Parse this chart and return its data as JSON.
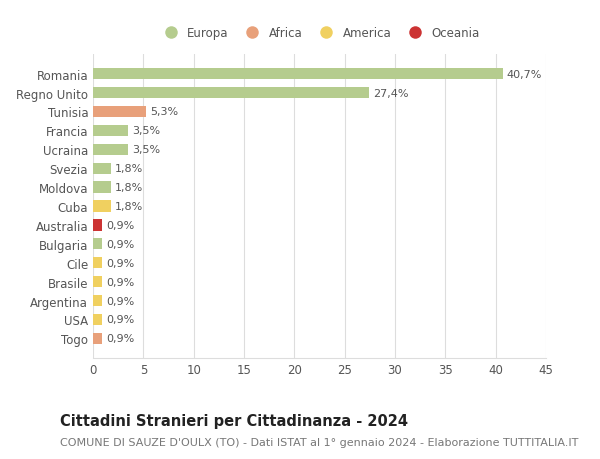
{
  "countries": [
    "Romania",
    "Regno Unito",
    "Tunisia",
    "Francia",
    "Ucraina",
    "Svezia",
    "Moldova",
    "Cuba",
    "Australia",
    "Bulgaria",
    "Cile",
    "Brasile",
    "Argentina",
    "USA",
    "Togo"
  ],
  "values": [
    40.7,
    27.4,
    5.3,
    3.5,
    3.5,
    1.8,
    1.8,
    1.8,
    0.9,
    0.9,
    0.9,
    0.9,
    0.9,
    0.9,
    0.9
  ],
  "labels": [
    "40,7%",
    "27,4%",
    "5,3%",
    "3,5%",
    "3,5%",
    "1,8%",
    "1,8%",
    "1,8%",
    "0,9%",
    "0,9%",
    "0,9%",
    "0,9%",
    "0,9%",
    "0,9%",
    "0,9%"
  ],
  "continents": [
    "Europa",
    "Europa",
    "Africa",
    "Europa",
    "Europa",
    "Europa",
    "Europa",
    "America",
    "Oceania",
    "Europa",
    "America",
    "America",
    "America",
    "America",
    "Africa"
  ],
  "continent_colors": {
    "Europa": "#b5cc8e",
    "Africa": "#e8a07a",
    "America": "#f0d060",
    "Oceania": "#cc3333"
  },
  "legend_order": [
    "Europa",
    "Africa",
    "America",
    "Oceania"
  ],
  "title": "Cittadini Stranieri per Cittadinanza - 2024",
  "subtitle": "COMUNE DI SAUZE D'OULX (TO) - Dati ISTAT al 1° gennaio 2024 - Elaborazione TUTTITALIA.IT",
  "xlim": [
    0,
    45
  ],
  "xticks": [
    0,
    5,
    10,
    15,
    20,
    25,
    30,
    35,
    40,
    45
  ],
  "background_color": "#ffffff",
  "grid_color": "#dddddd",
  "bar_height": 0.6,
  "title_fontsize": 10.5,
  "subtitle_fontsize": 8,
  "tick_fontsize": 8.5,
  "label_fontsize": 8,
  "legend_fontsize": 8.5
}
